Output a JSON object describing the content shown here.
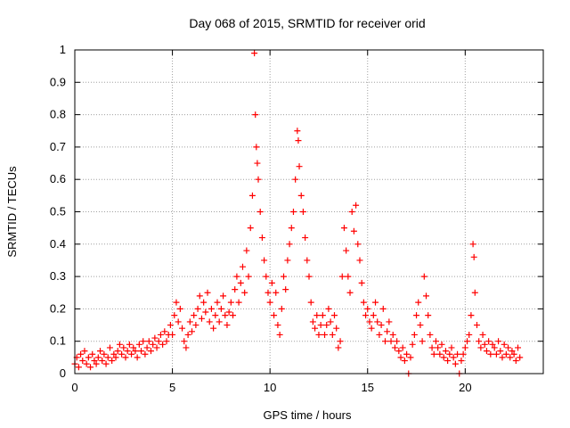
{
  "chart_data": {
    "type": "scatter",
    "marker": "+",
    "color": "#ff0000",
    "title": "Day 068 of 2015, SRMTID for receiver orid",
    "xlabel": "GPS time / hours",
    "ylabel": "SRMTID / TECUs",
    "xlim": [
      0,
      24
    ],
    "ylim": [
      0,
      1
    ],
    "xticks": [
      0,
      5,
      10,
      15,
      20
    ],
    "yticks": [
      0,
      0.1,
      0.2,
      0.3,
      0.4,
      0.5,
      0.6,
      0.7,
      0.8,
      0.9,
      1
    ],
    "xtick_labels": [
      "0",
      "5",
      "10",
      "15",
      "20"
    ],
    "ytick_labels": [
      "0",
      "0.1",
      "0.2",
      "0.3",
      "0.4",
      "0.5",
      "0.6",
      "0.7",
      "0.8",
      "0.9",
      "1"
    ],
    "grid": true,
    "series": [
      {
        "name": "SRMTID",
        "points": [
          [
            0.0,
            0.03
          ],
          [
            0.1,
            0.05
          ],
          [
            0.2,
            0.02
          ],
          [
            0.3,
            0.06
          ],
          [
            0.4,
            0.04
          ],
          [
            0.5,
            0.07
          ],
          [
            0.6,
            0.03
          ],
          [
            0.7,
            0.05
          ],
          [
            0.8,
            0.02
          ],
          [
            0.9,
            0.06
          ],
          [
            1.0,
            0.04
          ],
          [
            1.1,
            0.03
          ],
          [
            1.2,
            0.05
          ],
          [
            1.3,
            0.07
          ],
          [
            1.4,
            0.04
          ],
          [
            1.5,
            0.06
          ],
          [
            1.6,
            0.03
          ],
          [
            1.7,
            0.05
          ],
          [
            1.8,
            0.08
          ],
          [
            1.9,
            0.04
          ],
          [
            2.0,
            0.06
          ],
          [
            2.1,
            0.05
          ],
          [
            2.2,
            0.07
          ],
          [
            2.3,
            0.09
          ],
          [
            2.4,
            0.06
          ],
          [
            2.5,
            0.08
          ],
          [
            2.6,
            0.05
          ],
          [
            2.7,
            0.07
          ],
          [
            2.8,
            0.09
          ],
          [
            2.9,
            0.06
          ],
          [
            3.0,
            0.08
          ],
          [
            3.1,
            0.07
          ],
          [
            3.2,
            0.05
          ],
          [
            3.3,
            0.09
          ],
          [
            3.4,
            0.07
          ],
          [
            3.5,
            0.1
          ],
          [
            3.6,
            0.06
          ],
          [
            3.7,
            0.08
          ],
          [
            3.8,
            0.1
          ],
          [
            3.9,
            0.07
          ],
          [
            4.0,
            0.09
          ],
          [
            4.1,
            0.11
          ],
          [
            4.2,
            0.08
          ],
          [
            4.3,
            0.1
          ],
          [
            4.4,
            0.12
          ],
          [
            4.5,
            0.09
          ],
          [
            4.6,
            0.13
          ],
          [
            4.7,
            0.1
          ],
          [
            4.8,
            0.12
          ],
          [
            4.9,
            0.15
          ],
          [
            5.0,
            0.12
          ],
          [
            5.1,
            0.18
          ],
          [
            5.2,
            0.22
          ],
          [
            5.3,
            0.16
          ],
          [
            5.4,
            0.2
          ],
          [
            5.5,
            0.14
          ],
          [
            5.6,
            0.1
          ],
          [
            5.7,
            0.08
          ],
          [
            5.8,
            0.12
          ],
          [
            5.9,
            0.16
          ],
          [
            6.0,
            0.13
          ],
          [
            6.1,
            0.18
          ],
          [
            6.2,
            0.15
          ],
          [
            6.3,
            0.2
          ],
          [
            6.4,
            0.24
          ],
          [
            6.5,
            0.17
          ],
          [
            6.6,
            0.22
          ],
          [
            6.7,
            0.19
          ],
          [
            6.8,
            0.25
          ],
          [
            6.9,
            0.16
          ],
          [
            7.0,
            0.2
          ],
          [
            7.1,
            0.14
          ],
          [
            7.2,
            0.18
          ],
          [
            7.3,
            0.22
          ],
          [
            7.4,
            0.16
          ],
          [
            7.5,
            0.2
          ],
          [
            7.6,
            0.24
          ],
          [
            7.7,
            0.18
          ],
          [
            7.8,
            0.15
          ],
          [
            7.9,
            0.19
          ],
          [
            8.0,
            0.22
          ],
          [
            8.1,
            0.18
          ],
          [
            8.2,
            0.26
          ],
          [
            8.3,
            0.3
          ],
          [
            8.4,
            0.22
          ],
          [
            8.5,
            0.28
          ],
          [
            8.6,
            0.33
          ],
          [
            8.7,
            0.25
          ],
          [
            8.8,
            0.38
          ],
          [
            8.9,
            0.3
          ],
          [
            9.0,
            0.45
          ],
          [
            9.1,
            0.55
          ],
          [
            9.2,
            0.99
          ],
          [
            9.25,
            0.8
          ],
          [
            9.3,
            0.7
          ],
          [
            9.35,
            0.65
          ],
          [
            9.4,
            0.6
          ],
          [
            9.5,
            0.5
          ],
          [
            9.6,
            0.42
          ],
          [
            9.7,
            0.35
          ],
          [
            9.8,
            0.3
          ],
          [
            9.9,
            0.25
          ],
          [
            10.0,
            0.22
          ],
          [
            10.1,
            0.28
          ],
          [
            10.2,
            0.18
          ],
          [
            10.3,
            0.25
          ],
          [
            10.4,
            0.15
          ],
          [
            10.5,
            0.12
          ],
          [
            10.6,
            0.2
          ],
          [
            10.7,
            0.3
          ],
          [
            10.8,
            0.26
          ],
          [
            10.9,
            0.35
          ],
          [
            11.0,
            0.4
          ],
          [
            11.1,
            0.45
          ],
          [
            11.2,
            0.5
          ],
          [
            11.3,
            0.6
          ],
          [
            11.4,
            0.75
          ],
          [
            11.45,
            0.72
          ],
          [
            11.5,
            0.64
          ],
          [
            11.6,
            0.55
          ],
          [
            11.7,
            0.5
          ],
          [
            11.8,
            0.42
          ],
          [
            11.9,
            0.35
          ],
          [
            12.0,
            0.3
          ],
          [
            12.1,
            0.22
          ],
          [
            12.2,
            0.16
          ],
          [
            12.3,
            0.14
          ],
          [
            12.4,
            0.18
          ],
          [
            12.5,
            0.12
          ],
          [
            12.6,
            0.15
          ],
          [
            12.7,
            0.18
          ],
          [
            12.8,
            0.12
          ],
          [
            12.9,
            0.15
          ],
          [
            13.0,
            0.2
          ],
          [
            13.1,
            0.16
          ],
          [
            13.2,
            0.12
          ],
          [
            13.3,
            0.18
          ],
          [
            13.4,
            0.14
          ],
          [
            13.5,
            0.08
          ],
          [
            13.6,
            0.1
          ],
          [
            13.7,
            0.3
          ],
          [
            13.8,
            0.45
          ],
          [
            13.9,
            0.38
          ],
          [
            14.0,
            0.3
          ],
          [
            14.1,
            0.25
          ],
          [
            14.2,
            0.5
          ],
          [
            14.3,
            0.44
          ],
          [
            14.4,
            0.52
          ],
          [
            14.5,
            0.4
          ],
          [
            14.6,
            0.35
          ],
          [
            14.7,
            0.28
          ],
          [
            14.8,
            0.22
          ],
          [
            14.9,
            0.18
          ],
          [
            15.0,
            0.2
          ],
          [
            15.1,
            0.16
          ],
          [
            15.2,
            0.14
          ],
          [
            15.3,
            0.18
          ],
          [
            15.4,
            0.22
          ],
          [
            15.5,
            0.16
          ],
          [
            15.6,
            0.12
          ],
          [
            15.7,
            0.15
          ],
          [
            15.8,
            0.2
          ],
          [
            15.9,
            0.1
          ],
          [
            16.0,
            0.13
          ],
          [
            16.1,
            0.16
          ],
          [
            16.2,
            0.1
          ],
          [
            16.3,
            0.12
          ],
          [
            16.4,
            0.08
          ],
          [
            16.5,
            0.1
          ],
          [
            16.6,
            0.07
          ],
          [
            16.7,
            0.05
          ],
          [
            16.8,
            0.08
          ],
          [
            16.9,
            0.04
          ],
          [
            17.0,
            0.06
          ],
          [
            17.1,
            0.0
          ],
          [
            17.2,
            0.05
          ],
          [
            17.3,
            0.09
          ],
          [
            17.4,
            0.12
          ],
          [
            17.5,
            0.18
          ],
          [
            17.6,
            0.22
          ],
          [
            17.7,
            0.15
          ],
          [
            17.8,
            0.1
          ],
          [
            17.9,
            0.3
          ],
          [
            18.0,
            0.24
          ],
          [
            18.1,
            0.18
          ],
          [
            18.2,
            0.12
          ],
          [
            18.3,
            0.08
          ],
          [
            18.4,
            0.06
          ],
          [
            18.5,
            0.1
          ],
          [
            18.6,
            0.08
          ],
          [
            18.7,
            0.06
          ],
          [
            18.8,
            0.09
          ],
          [
            18.9,
            0.05
          ],
          [
            19.0,
            0.07
          ],
          [
            19.1,
            0.04
          ],
          [
            19.2,
            0.06
          ],
          [
            19.3,
            0.08
          ],
          [
            19.4,
            0.05
          ],
          [
            19.5,
            0.03
          ],
          [
            19.6,
            0.06
          ],
          [
            19.7,
            0.0
          ],
          [
            19.8,
            0.04
          ],
          [
            19.9,
            0.06
          ],
          [
            20.0,
            0.08
          ],
          [
            20.1,
            0.1
          ],
          [
            20.2,
            0.12
          ],
          [
            20.3,
            0.18
          ],
          [
            20.4,
            0.4
          ],
          [
            20.45,
            0.36
          ],
          [
            20.5,
            0.25
          ],
          [
            20.6,
            0.15
          ],
          [
            20.7,
            0.1
          ],
          [
            20.8,
            0.08
          ],
          [
            20.9,
            0.12
          ],
          [
            21.0,
            0.09
          ],
          [
            21.1,
            0.07
          ],
          [
            21.2,
            0.1
          ],
          [
            21.3,
            0.06
          ],
          [
            21.4,
            0.09
          ],
          [
            21.5,
            0.08
          ],
          [
            21.6,
            0.06
          ],
          [
            21.7,
            0.1
          ],
          [
            21.8,
            0.07
          ],
          [
            21.9,
            0.05
          ],
          [
            22.0,
            0.09
          ],
          [
            22.1,
            0.06
          ],
          [
            22.2,
            0.08
          ],
          [
            22.3,
            0.05
          ],
          [
            22.4,
            0.07
          ],
          [
            22.5,
            0.06
          ],
          [
            22.6,
            0.04
          ],
          [
            22.7,
            0.08
          ],
          [
            22.8,
            0.05
          ]
        ]
      }
    ]
  }
}
